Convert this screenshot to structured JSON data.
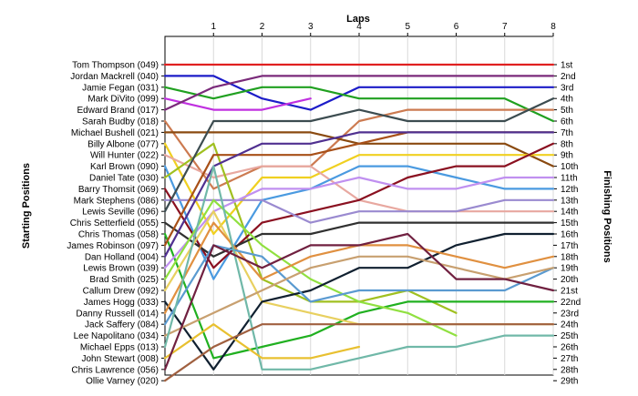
{
  "chart_data": {
    "type": "line",
    "title": "",
    "xlabel": "Laps",
    "ylabel_left": "Starting Positions",
    "ylabel_right": "Finishing Positions",
    "laps": [
      0,
      1,
      2,
      3,
      4,
      5,
      6,
      7,
      8
    ],
    "lap_tick_labels": [
      "1",
      "2",
      "3",
      "4",
      "5",
      "6",
      "7",
      "8"
    ],
    "drivers": [
      "Tom Thompson (049)",
      "Jordan Mackrell (040)",
      "Jamie Fegan (031)",
      "Mark DiVito (099)",
      "Edward Brand (017)",
      "Sarah Budby (018)",
      "Michael Bushell (021)",
      "Billy Albone (077)",
      "Will Hunter (022)",
      "Karl Brown (090)",
      "Daniel Tate (030)",
      "Barry Thomsit (069)",
      "Mark Stephens (086)",
      "Lewis Seville (096)",
      "Chris Setterfield (055)",
      "Chris Thomas (058)",
      "James Robinson (097)",
      "Dan Holland (004)",
      "Lewis Brown (039)",
      "Brad Smith (025)",
      "Callum Drew (092)",
      "James Hogg (033)",
      "Danny Russell (014)",
      "Jack Saffery (084)",
      "Lee Napolitano (034)",
      "Michael Epps (013)",
      "John Stewart (008)",
      "Chris Lawrence (056)",
      "Ollie Varney (020)"
    ],
    "finishing_positions": [
      "1st",
      "2nd",
      "3rd",
      "4th",
      "5th",
      "6th",
      "7th",
      "8th",
      "9th",
      "10th",
      "11th",
      "12th",
      "13th",
      "14th",
      "15th",
      "16th",
      "17th",
      "18th",
      "19th",
      "20th",
      "21st",
      "22nd",
      "23rd",
      "24th",
      "25th",
      "26th",
      "27th",
      "28th",
      "29th"
    ],
    "series": [
      {
        "color": "#e02020",
        "positions": [
          1,
          1,
          1,
          1,
          1,
          1,
          1,
          1,
          1
        ]
      },
      {
        "color": "#1c1cc8",
        "positions": [
          2,
          2,
          4,
          5,
          3,
          3,
          3,
          3,
          3
        ]
      },
      {
        "color": "#20a020",
        "positions": [
          3,
          4,
          3,
          3,
          4,
          4,
          4,
          4,
          6
        ]
      },
      {
        "color": "#c030e0",
        "positions": [
          4,
          5,
          5,
          4,
          null,
          null,
          null,
          null,
          null
        ]
      },
      {
        "color": "#7a2a7a",
        "positions": [
          5,
          3,
          2,
          2,
          2,
          2,
          2,
          2,
          2
        ]
      },
      {
        "color": "#cc7a50",
        "positions": [
          6,
          12,
          10,
          10,
          6,
          5,
          5,
          5,
          5
        ]
      },
      {
        "color": "#8a4a10",
        "positions": [
          7,
          7,
          7,
          7,
          8,
          8,
          8,
          8,
          10
        ]
      },
      {
        "color": "#f0d020",
        "positions": [
          8,
          16,
          11,
          11,
          9,
          9,
          9,
          9,
          9
        ]
      },
      {
        "color": "#e8a8a0",
        "positions": [
          9,
          11,
          10,
          10,
          13,
          14,
          14,
          14,
          14
        ]
      },
      {
        "color": "#4a9ae0",
        "positions": [
          10,
          20,
          13,
          12,
          10,
          10,
          11,
          12,
          12
        ]
      },
      {
        "color": "#a0c020",
        "positions": [
          11,
          8,
          20,
          22,
          22,
          21,
          23,
          null,
          null
        ]
      },
      {
        "color": "#8a1020",
        "positions": [
          12,
          19,
          15,
          14,
          13,
          11,
          10,
          10,
          8
        ]
      },
      {
        "color": "#9a8ad0",
        "positions": [
          13,
          13,
          13,
          15,
          14,
          14,
          14,
          13,
          13
        ]
      },
      {
        "color": "#3c4c50",
        "positions": [
          14,
          6,
          6,
          6,
          5,
          6,
          6,
          6,
          4
        ]
      },
      {
        "color": "#303030",
        "positions": [
          15,
          18,
          16,
          16,
          15,
          15,
          15,
          15,
          15
        ]
      },
      {
        "color": "#20b020",
        "positions": [
          16,
          27,
          26,
          25,
          23,
          22,
          22,
          22,
          22
        ]
      },
      {
        "color": "#a85018",
        "positions": [
          17,
          9,
          9,
          9,
          8,
          7,
          7,
          7,
          7
        ]
      },
      {
        "color": "#503090",
        "positions": [
          18,
          10,
          8,
          8,
          7,
          7,
          7,
          7,
          7
        ]
      },
      {
        "color": "#c090f0",
        "positions": [
          19,
          14,
          12,
          12,
          11,
          12,
          12,
          11,
          11
        ]
      },
      {
        "color": "#90e040",
        "positions": [
          20,
          13,
          17,
          20,
          22,
          23,
          25,
          null,
          null
        ]
      },
      {
        "color": "#e8d060",
        "positions": [
          21,
          14,
          22,
          23,
          24,
          24,
          24,
          24,
          24
        ]
      },
      {
        "color": "#102030",
        "positions": [
          22,
          28,
          22,
          21,
          19,
          19,
          17,
          16,
          16
        ]
      },
      {
        "color": "#e09040",
        "positions": [
          23,
          15,
          20,
          18,
          17,
          17,
          18,
          19,
          18
        ]
      },
      {
        "color": "#5a9ad0",
        "positions": [
          24,
          17,
          18,
          22,
          21,
          21,
          21,
          21,
          19
        ]
      },
      {
        "color": "#c8a070",
        "positions": [
          25,
          23,
          21,
          19,
          18,
          18,
          19,
          20,
          19
        ]
      },
      {
        "color": "#70b8a8",
        "positions": [
          26,
          10,
          28,
          28,
          27,
          26,
          26,
          25,
          25
        ]
      },
      {
        "color": "#e8c030",
        "positions": [
          27,
          24,
          27,
          27,
          26,
          null,
          null,
          null,
          null
        ]
      },
      {
        "color": "#702040",
        "positions": [
          28,
          17,
          19,
          17,
          17,
          16,
          20,
          20,
          21
        ]
      },
      {
        "color": "#a06040",
        "positions": [
          29,
          26,
          24,
          24,
          24,
          24,
          24,
          24,
          24
        ]
      }
    ]
  }
}
